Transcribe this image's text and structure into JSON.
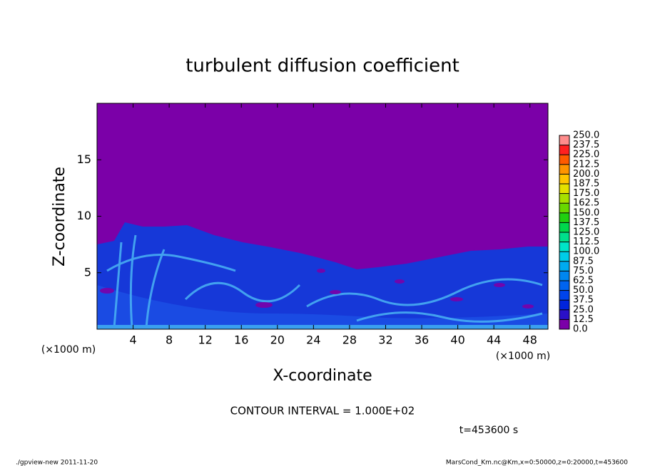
{
  "chart_data": {
    "type": "heatmap",
    "title": "turbulent diffusion coefficient",
    "xlabel": "X-coordinate",
    "ylabel": "Z-coordinate",
    "xunit": "(×1000 m)",
    "yunit": "(×1000 m)",
    "xlim": [
      0,
      50
    ],
    "ylim": [
      0,
      20
    ],
    "xticks": [
      4,
      8,
      12,
      16,
      20,
      24,
      28,
      32,
      36,
      40,
      44,
      48
    ],
    "yticks": [
      5,
      10,
      15
    ],
    "colorbar": {
      "levels": [
        {
          "value": 0,
          "label": "0.0"
        },
        {
          "value": 12.5,
          "label": "12.5"
        },
        {
          "value": 25,
          "label": "25.0"
        },
        {
          "value": 37.5,
          "label": "37.5"
        },
        {
          "value": 50,
          "label": "50.0"
        },
        {
          "value": 62.5,
          "label": "62.5"
        },
        {
          "value": 75,
          "label": "75.0"
        },
        {
          "value": 87.5,
          "label": "87.5"
        },
        {
          "value": 100,
          "label": "100.0"
        },
        {
          "value": 112.5,
          "label": "112.5"
        },
        {
          "value": 125,
          "label": "125.0"
        },
        {
          "value": 137.5,
          "label": "137.5"
        },
        {
          "value": 150,
          "label": "150.0"
        },
        {
          "value": 162.5,
          "label": "162.5"
        },
        {
          "value": 175,
          "label": "175.0"
        },
        {
          "value": 187.5,
          "label": "187.5"
        },
        {
          "value": 200,
          "label": "200.0"
        },
        {
          "value": 212.5,
          "label": "212.5"
        },
        {
          "value": 225,
          "label": "225.0"
        },
        {
          "value": 237.5,
          "label": "237.5"
        },
        {
          "value": 250,
          "label": "250.0"
        }
      ],
      "colors": [
        "#7b00a8",
        "#2a10c8",
        "#0024dc",
        "#0044ec",
        "#0064f0",
        "#0086f0",
        "#00aaf0",
        "#00cce8",
        "#00e4c8",
        "#00e08c",
        "#00d84c",
        "#20d010",
        "#68d800",
        "#a8e000",
        "#e4e000",
        "#ffc400",
        "#ff9400",
        "#ff5a00",
        "#ff2020",
        "#ff8c8c"
      ]
    },
    "annotations": {
      "contour_interval": "CONTOUR INTERVAL = 1.000E+02",
      "time": "t=453600 s",
      "footer_left": "./gpview-new   2011-11-20",
      "footer_right": "MarsCond_Km.nc@Km,x=0:50000,z=0:20000,t=453600"
    }
  }
}
